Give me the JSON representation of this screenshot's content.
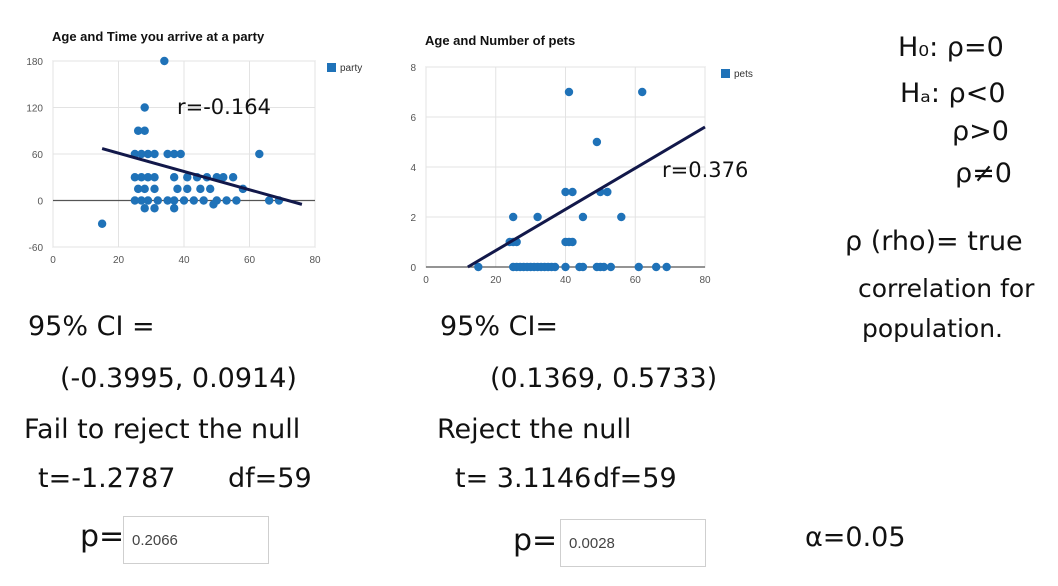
{
  "chart_data": [
    {
      "type": "scatter",
      "title": "Age and Time you arrive at a party",
      "series": [
        {
          "name": "party",
          "color": "#1f72b8"
        }
      ],
      "xlim": [
        0,
        80
      ],
      "ylim": [
        -60,
        180
      ],
      "xticks": [
        0,
        20,
        40,
        60,
        80
      ],
      "yticks": [
        -60,
        0,
        60,
        120,
        180
      ],
      "grid": true,
      "legend": "top-right",
      "points": [
        [
          15,
          -30
        ],
        [
          34,
          180
        ],
        [
          28,
          120
        ],
        [
          26,
          90
        ],
        [
          28,
          90
        ],
        [
          25,
          60
        ],
        [
          27,
          60
        ],
        [
          29,
          60
        ],
        [
          31,
          60
        ],
        [
          35,
          60
        ],
        [
          37,
          60
        ],
        [
          39,
          60
        ],
        [
          63,
          60
        ],
        [
          25,
          30
        ],
        [
          27,
          30
        ],
        [
          29,
          30
        ],
        [
          31,
          30
        ],
        [
          37,
          30
        ],
        [
          41,
          30
        ],
        [
          44,
          30
        ],
        [
          47,
          30
        ],
        [
          50,
          30
        ],
        [
          52,
          30
        ],
        [
          55,
          30
        ],
        [
          26,
          15
        ],
        [
          28,
          15
        ],
        [
          31,
          15
        ],
        [
          38,
          15
        ],
        [
          41,
          15
        ],
        [
          45,
          15
        ],
        [
          48,
          15
        ],
        [
          58,
          15
        ],
        [
          25,
          0
        ],
        [
          27,
          0
        ],
        [
          29,
          0
        ],
        [
          32,
          0
        ],
        [
          35,
          0
        ],
        [
          37,
          0
        ],
        [
          40,
          0
        ],
        [
          43,
          0
        ],
        [
          46,
          0
        ],
        [
          50,
          0
        ],
        [
          53,
          0
        ],
        [
          56,
          0
        ],
        [
          66,
          0
        ],
        [
          69,
          0
        ],
        [
          28,
          -10
        ],
        [
          31,
          -10
        ],
        [
          37,
          -10
        ],
        [
          49,
          -5
        ]
      ],
      "trendline": {
        "x": [
          15,
          76
        ],
        "y": [
          67,
          -5
        ]
      },
      "r_label": "r=-0.164"
    },
    {
      "type": "scatter",
      "title": "Age and Number of pets",
      "series": [
        {
          "name": "pets",
          "color": "#1f72b8"
        }
      ],
      "xlim": [
        0,
        80
      ],
      "ylim": [
        0,
        8
      ],
      "xticks": [
        0,
        20,
        40,
        60,
        80
      ],
      "yticks": [
        0,
        2,
        4,
        6,
        8
      ],
      "grid": true,
      "legend": "top-right",
      "points": [
        [
          41,
          7
        ],
        [
          62,
          7
        ],
        [
          49,
          5
        ],
        [
          40,
          3
        ],
        [
          42,
          3
        ],
        [
          50,
          3
        ],
        [
          52,
          3
        ],
        [
          25,
          2
        ],
        [
          32,
          2
        ],
        [
          45,
          2
        ],
        [
          56,
          2
        ],
        [
          24,
          1
        ],
        [
          25,
          1
        ],
        [
          26,
          1
        ],
        [
          40,
          1
        ],
        [
          41,
          1
        ],
        [
          42,
          1
        ],
        [
          15,
          0
        ],
        [
          25,
          0
        ],
        [
          26,
          0
        ],
        [
          27,
          0
        ],
        [
          28,
          0
        ],
        [
          29,
          0
        ],
        [
          30,
          0
        ],
        [
          31,
          0
        ],
        [
          32,
          0
        ],
        [
          33,
          0
        ],
        [
          34,
          0
        ],
        [
          35,
          0
        ],
        [
          36,
          0
        ],
        [
          37,
          0
        ],
        [
          40,
          0
        ],
        [
          44,
          0
        ],
        [
          45,
          0
        ],
        [
          49,
          0
        ],
        [
          50,
          0
        ],
        [
          51,
          0
        ],
        [
          53,
          0
        ],
        [
          61,
          0
        ],
        [
          66,
          0
        ],
        [
          69,
          0
        ]
      ],
      "trendline": {
        "x": [
          12,
          80
        ],
        "y": [
          0,
          5.6
        ]
      },
      "r_label": "r=0.376"
    }
  ],
  "notes": {
    "left": {
      "ci_label": "95% CI =",
      "ci_value": "(-0.3995, 0.0914)",
      "decision": "Fail to reject the null",
      "t": "t=-1.2787",
      "df": "df=59",
      "p_label": "p=",
      "p_value": "0.2066"
    },
    "middle": {
      "ci_label": "95% CI=",
      "ci_value": "(0.1369, 0.5733)",
      "decision": "Reject the null",
      "t": "t= 3.1146",
      "df": "df=59",
      "p_label": "p=",
      "p_value": "0.0028"
    },
    "right": {
      "h0": "H₀: ρ=0",
      "ha": "Hₐ: ρ<0",
      "ha2": "ρ>0",
      "ha3": "ρ≠0",
      "rho_def1": "ρ (rho)= true",
      "rho_def2": "correlation for",
      "rho_def3": "population.",
      "alpha": "α=0.05"
    }
  }
}
